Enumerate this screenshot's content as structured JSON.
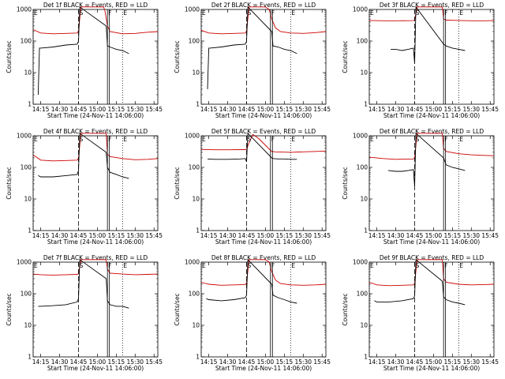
{
  "chart_data": [
    {
      "type": "line",
      "title": "Det 1f BLACK = Events, RED = LLD",
      "xlabel": "Start Time (24-Nov-11 14:06:00)",
      "ylabel": "Counts/sec",
      "yscale": "log",
      "ylim": [
        1,
        1000
      ],
      "xlim": [
        "14:09",
        "15:48"
      ],
      "x_ticks": [
        "14:15",
        "14:30",
        "14:45",
        "15:00",
        "15:15",
        "15:30",
        "15:45"
      ],
      "y_ticks": [
        "1",
        "10",
        "100",
        "1000"
      ],
      "markers": [
        {
          "label": "E",
          "x": "14:09"
        },
        {
          "label": "S",
          "x": "14:45"
        },
        {
          "label": "F",
          "x": "15:08"
        },
        {
          "label": "E",
          "x": "15:20"
        }
      ],
      "series": [
        {
          "name": "LLD",
          "color": "#cc0000",
          "x": [
            "14:09",
            "14:15",
            "14:25",
            "14:35",
            "14:44",
            "14:45",
            "14:47",
            "14:49",
            "15:05",
            "15:06",
            "15:08",
            "15:10",
            "15:20",
            "15:30",
            "15:40",
            "15:48"
          ],
          "y": [
            230,
            180,
            170,
            175,
            180,
            210,
            1200,
            1200,
            1200,
            900,
            300,
            200,
            170,
            175,
            190,
            200
          ]
        },
        {
          "name": "Events",
          "color": "#000000",
          "x": [
            "14:13",
            "14:14",
            "14:15",
            "14:25",
            "14:35",
            "14:44",
            "14:45",
            "14:46",
            "15:07",
            "15:08",
            "15:10",
            "15:15",
            "15:20",
            "15:25"
          ],
          "y": [
            2,
            60,
            60,
            65,
            75,
            80,
            100,
            1200,
            300,
            70,
            65,
            55,
            50,
            40
          ]
        }
      ]
    },
    {
      "type": "line",
      "title": "Det 2f BLACK = Events, RED = LLD",
      "xlabel": "Start Time (24-Nov-11 14:06:00)",
      "ylabel": "Counts/sec",
      "yscale": "log",
      "ylim": [
        1,
        1000
      ],
      "xlim": [
        "14:09",
        "15:48"
      ],
      "x_ticks": [
        "14:15",
        "14:30",
        "14:45",
        "15:00",
        "15:15",
        "15:30",
        "15:45"
      ],
      "y_ticks": [
        "1",
        "10",
        "100",
        "1000"
      ],
      "markers": [
        {
          "label": "E",
          "x": "14:09"
        },
        {
          "label": "S",
          "x": "14:45"
        },
        {
          "label": "F",
          "x": "15:04"
        },
        {
          "label": "E",
          "x": "15:20"
        }
      ],
      "series": [
        {
          "name": "LLD",
          "color": "#cc0000",
          "x": [
            "14:09",
            "14:15",
            "14:25",
            "14:35",
            "14:44",
            "14:45",
            "14:47",
            "15:00",
            "15:03",
            "15:05",
            "15:08",
            "15:12",
            "15:20",
            "15:30",
            "15:40",
            "15:48"
          ],
          "y": [
            220,
            180,
            170,
            175,
            180,
            210,
            1200,
            1200,
            1000,
            500,
            260,
            200,
            180,
            175,
            185,
            200
          ]
        },
        {
          "name": "Events",
          "color": "#000000",
          "x": [
            "14:14",
            "14:15",
            "14:16",
            "14:25",
            "14:35",
            "14:44",
            "14:45",
            "14:46",
            "15:05",
            "15:06",
            "15:10",
            "15:15",
            "15:20",
            "15:25"
          ],
          "y": [
            3,
            60,
            60,
            65,
            75,
            80,
            100,
            1200,
            200,
            70,
            65,
            55,
            50,
            40
          ]
        }
      ]
    },
    {
      "type": "line",
      "title": "Det 3f BLACK = Events, RED = LLD",
      "xlabel": "Start Time (24-Nov-11 14:06:00)",
      "ylabel": "Counts/sec",
      "yscale": "log",
      "ylim": [
        1,
        1000
      ],
      "xlim": [
        "14:09",
        "15:48"
      ],
      "x_ticks": [
        "14:15",
        "14:30",
        "14:45",
        "15:00",
        "15:15",
        "15:30",
        "15:45"
      ],
      "y_ticks": [
        "1",
        "10",
        "100",
        "1000"
      ],
      "markers": [
        {
          "label": "E",
          "x": "14:09"
        },
        {
          "label": "S",
          "x": "14:45"
        },
        {
          "label": "F",
          "x": "15:08"
        },
        {
          "label": "E",
          "x": "15:20"
        }
      ],
      "series": [
        {
          "name": "LLD",
          "color": "#cc0000",
          "x": [
            "14:09",
            "14:20",
            "14:30",
            "14:44",
            "14:45",
            "14:47",
            "15:07",
            "15:08",
            "15:10",
            "15:20",
            "15:30",
            "15:40",
            "15:48"
          ],
          "y": [
            450,
            440,
            440,
            445,
            460,
            1200,
            1200,
            500,
            460,
            450,
            440,
            440,
            445
          ]
        },
        {
          "name": "Events",
          "color": "#000000",
          "x": [
            "14:26",
            "14:30",
            "14:35",
            "14:40",
            "14:44",
            "14:45",
            "14:46",
            "15:08",
            "15:10",
            "15:15",
            "15:20",
            "15:25"
          ],
          "y": [
            55,
            55,
            50,
            55,
            60,
            20,
            1200,
            80,
            70,
            60,
            55,
            50
          ]
        }
      ]
    },
    {
      "type": "line",
      "title": "Det 4f BLACK = Events, RED = LLD",
      "xlabel": "Start Time (24-Nov-11 14:06:00)",
      "ylabel": "Counts/sec",
      "yscale": "log",
      "ylim": [
        1,
        1000
      ],
      "xlim": [
        "14:09",
        "15:48"
      ],
      "x_ticks": [
        "14:15",
        "14:30",
        "14:45",
        "15:00",
        "15:15",
        "15:30",
        "15:45"
      ],
      "y_ticks": [
        "1",
        "10",
        "100",
        "1000"
      ],
      "markers": [
        {
          "label": "E",
          "x": "14:09"
        },
        {
          "label": "S",
          "x": "14:45"
        },
        {
          "label": "F",
          "x": "15:08"
        },
        {
          "label": "E",
          "x": "15:20"
        }
      ],
      "series": [
        {
          "name": "LLD",
          "color": "#cc0000",
          "x": [
            "14:09",
            "14:15",
            "14:25",
            "14:35",
            "14:44",
            "14:45",
            "14:47",
            "15:07",
            "15:08",
            "15:10",
            "15:20",
            "15:30",
            "15:40",
            "15:48"
          ],
          "y": [
            250,
            170,
            160,
            165,
            170,
            200,
            1200,
            1200,
            260,
            220,
            190,
            175,
            180,
            190
          ]
        },
        {
          "name": "Events",
          "color": "#000000",
          "x": [
            "14:13",
            "14:15",
            "14:25",
            "14:35",
            "14:44",
            "14:45",
            "14:46",
            "15:07",
            "15:08",
            "15:10",
            "15:15",
            "15:20",
            "15:25"
          ],
          "y": [
            55,
            50,
            50,
            55,
            60,
            80,
            1200,
            300,
            100,
            70,
            60,
            50,
            45
          ]
        }
      ]
    },
    {
      "type": "line",
      "title": "Det 5f BLACK = Events, RED = LLD",
      "xlabel": "Start Time (24-Nov-11 14:06:00)",
      "ylabel": "Counts/sec",
      "yscale": "log",
      "ylim": [
        1,
        1000
      ],
      "xlim": [
        "14:09",
        "15:48"
      ],
      "x_ticks": [
        "14:15",
        "14:30",
        "14:45",
        "15:00",
        "15:15",
        "15:30",
        "15:45"
      ],
      "y_ticks": [
        "1",
        "10",
        "100",
        "1000"
      ],
      "markers": [
        {
          "label": "E",
          "x": "14:09"
        },
        {
          "label": "S",
          "x": "14:45"
        },
        {
          "label": "F",
          "x": "15:04"
        },
        {
          "label": "E",
          "x": "15:20"
        }
      ],
      "series": [
        {
          "name": "LLD",
          "color": "#cc0000",
          "x": [
            "14:09",
            "14:20",
            "14:30",
            "14:44",
            "14:45",
            "14:47",
            "14:50",
            "14:55",
            "15:00",
            "15:03",
            "15:05",
            "15:08",
            "15:20",
            "15:30",
            "15:40",
            "15:48"
          ],
          "y": [
            370,
            360,
            360,
            365,
            380,
            600,
            1100,
            800,
            500,
            380,
            320,
            310,
            300,
            310,
            320,
            330
          ]
        },
        {
          "name": "Events",
          "color": "#000000",
          "x": [
            "14:14",
            "14:20",
            "14:30",
            "14:40",
            "14:44",
            "14:45",
            "14:46",
            "15:05",
            "15:06",
            "15:10",
            "15:15",
            "15:20",
            "15:25"
          ],
          "y": [
            185,
            180,
            180,
            185,
            190,
            150,
            1200,
            200,
            190,
            185,
            185,
            180,
            180
          ]
        }
      ]
    },
    {
      "type": "line",
      "title": "Det 6f BLACK = Events, RED = LLD",
      "xlabel": "Start Time (24-Nov-11 14:06:00)",
      "ylabel": "Counts/sec",
      "yscale": "log",
      "ylim": [
        1,
        1000
      ],
      "xlim": [
        "14:09",
        "15:48"
      ],
      "x_ticks": [
        "14:15",
        "14:30",
        "14:45",
        "15:00",
        "15:15",
        "15:30",
        "15:45"
      ],
      "y_ticks": [
        "1",
        "10",
        "100",
        "1000"
      ],
      "markers": [
        {
          "label": "E",
          "x": "14:09"
        },
        {
          "label": "S",
          "x": "14:45"
        },
        {
          "label": "F",
          "x": "15:08"
        },
        {
          "label": "E",
          "x": "15:20"
        }
      ],
      "series": [
        {
          "name": "LLD",
          "color": "#cc0000",
          "x": [
            "14:09",
            "14:20",
            "14:30",
            "14:44",
            "14:45",
            "14:47",
            "15:07",
            "15:08",
            "15:10",
            "15:20",
            "15:30",
            "15:40",
            "15:48"
          ],
          "y": [
            210,
            190,
            180,
            185,
            200,
            1200,
            1200,
            400,
            320,
            270,
            250,
            240,
            235
          ]
        },
        {
          "name": "Events",
          "color": "#000000",
          "x": [
            "14:24",
            "14:30",
            "14:35",
            "14:40",
            "14:44",
            "14:45",
            "14:46",
            "15:08",
            "15:10",
            "15:15",
            "15:20",
            "15:25"
          ],
          "y": [
            80,
            75,
            75,
            80,
            85,
            25,
            1200,
            200,
            120,
            100,
            90,
            80
          ]
        }
      ]
    },
    {
      "type": "line",
      "title": "Det 7f BLACK = Events, RED = LLD",
      "xlabel": "Start Time (24-Nov-11 14:06:00)",
      "ylabel": "Counts/sec",
      "yscale": "log",
      "ylim": [
        1,
        1000
      ],
      "xlim": [
        "14:09",
        "15:48"
      ],
      "x_ticks": [
        "14:15",
        "14:30",
        "14:45",
        "15:00",
        "15:15",
        "15:30",
        "15:45"
      ],
      "y_ticks": [
        "1",
        "10",
        "100",
        "1000"
      ],
      "markers": [
        {
          "label": "E",
          "x": "14:09"
        },
        {
          "label": "S",
          "x": "14:45"
        },
        {
          "label": "F",
          "x": "15:08"
        },
        {
          "label": "E",
          "x": "15:20"
        }
      ],
      "series": [
        {
          "name": "LLD",
          "color": "#cc0000",
          "x": [
            "14:09",
            "14:15",
            "14:25",
            "14:35",
            "14:44",
            "14:45",
            "14:47",
            "15:07",
            "15:08",
            "15:10",
            "15:20",
            "15:30",
            "15:40",
            "15:48"
          ],
          "y": [
            420,
            400,
            390,
            400,
            410,
            430,
            1200,
            1200,
            600,
            450,
            420,
            400,
            410,
            420
          ]
        },
        {
          "name": "Events",
          "color": "#000000",
          "x": [
            "14:13",
            "14:15",
            "14:25",
            "14:35",
            "14:44",
            "14:45",
            "14:46",
            "15:07",
            "15:08",
            "15:10",
            "15:15",
            "15:20",
            "15:25"
          ],
          "y": [
            40,
            40,
            42,
            45,
            55,
            70,
            1200,
            300,
            60,
            45,
            40,
            40,
            35
          ]
        }
      ]
    },
    {
      "type": "line",
      "title": "Det 8f BLACK = Events, RED = LLD",
      "xlabel": "Start Time (24-Nov-11 14:06:00)",
      "ylabel": "Counts/sec",
      "yscale": "log",
      "ylim": [
        1,
        1000
      ],
      "xlim": [
        "14:09",
        "15:48"
      ],
      "x_ticks": [
        "14:15",
        "14:30",
        "14:45",
        "15:00",
        "15:15",
        "15:30",
        "15:45"
      ],
      "y_ticks": [
        "1",
        "10",
        "100",
        "1000"
      ],
      "markers": [
        {
          "label": "E",
          "x": "14:09"
        },
        {
          "label": "S",
          "x": "14:45"
        },
        {
          "label": "F",
          "x": "15:04"
        },
        {
          "label": "E",
          "x": "15:20"
        }
      ],
      "series": [
        {
          "name": "LLD",
          "color": "#cc0000",
          "x": [
            "14:09",
            "14:15",
            "14:25",
            "14:35",
            "14:44",
            "14:45",
            "14:47",
            "15:00",
            "15:03",
            "15:05",
            "15:08",
            "15:12",
            "15:20",
            "15:30",
            "15:40",
            "15:48"
          ],
          "y": [
            230,
            200,
            185,
            190,
            195,
            220,
            1200,
            1200,
            1000,
            500,
            270,
            210,
            190,
            185,
            190,
            200
          ]
        },
        {
          "name": "Events",
          "color": "#000000",
          "x": [
            "14:13",
            "14:15",
            "14:25",
            "14:35",
            "14:44",
            "14:45",
            "14:46",
            "15:05",
            "15:06",
            "15:10",
            "15:15",
            "15:20",
            "15:25"
          ],
          "y": [
            70,
            65,
            60,
            65,
            75,
            90,
            1200,
            200,
            90,
            75,
            65,
            55,
            50
          ]
        }
      ]
    },
    {
      "type": "line",
      "title": "Det 9f BLACK = Events, RED = LLD",
      "xlabel": "Start Time (24-Nov-11 14:06:00)",
      "ylabel": "Counts/sec",
      "yscale": "log",
      "ylim": [
        1,
        1000
      ],
      "xlim": [
        "14:09",
        "15:48"
      ],
      "x_ticks": [
        "14:15",
        "14:30",
        "14:45",
        "15:00",
        "15:15",
        "15:30",
        "15:45"
      ],
      "y_ticks": [
        "1",
        "10",
        "100",
        "1000"
      ],
      "markers": [
        {
          "label": "E",
          "x": "14:09"
        },
        {
          "label": "S",
          "x": "14:45"
        },
        {
          "label": "F",
          "x": "15:08"
        },
        {
          "label": "E",
          "x": "15:20"
        }
      ],
      "series": [
        {
          "name": "LLD",
          "color": "#cc0000",
          "x": [
            "14:09",
            "14:15",
            "14:25",
            "14:35",
            "14:44",
            "14:45",
            "14:47",
            "15:07",
            "15:08",
            "15:10",
            "15:20",
            "15:30",
            "15:40",
            "15:48"
          ],
          "y": [
            230,
            190,
            180,
            185,
            190,
            210,
            1200,
            1200,
            300,
            230,
            200,
            190,
            195,
            200
          ]
        },
        {
          "name": "Events",
          "color": "#000000",
          "x": [
            "14:13",
            "14:15",
            "14:25",
            "14:35",
            "14:44",
            "14:45",
            "14:46",
            "15:07",
            "15:08",
            "15:10",
            "15:15",
            "15:20",
            "15:25"
          ],
          "y": [
            60,
            55,
            55,
            60,
            70,
            85,
            1200,
            250,
            80,
            65,
            55,
            50,
            45
          ]
        }
      ]
    }
  ]
}
